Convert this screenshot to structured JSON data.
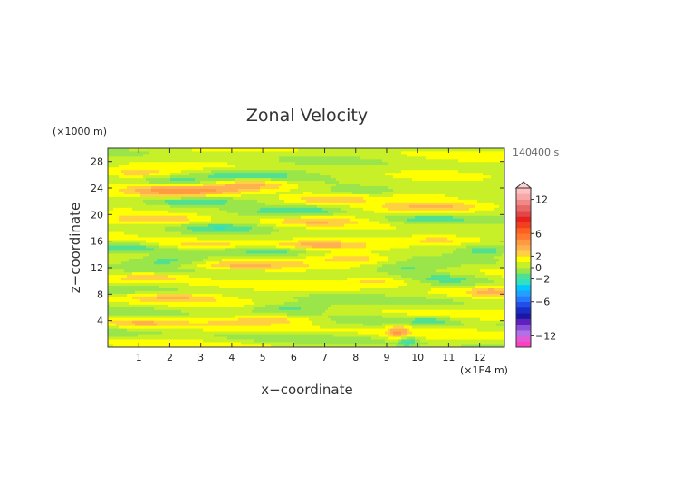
{
  "chart_data": {
    "type": "heatmap",
    "title": "Zonal Velocity",
    "xlabel": "x−coordinate",
    "ylabel": "z−coordinate",
    "x_unit": "(×1E4 m)",
    "y_unit": "(×1000 m)",
    "time_label": "140400 s",
    "xlim": [
      0,
      12.8
    ],
    "ylim": [
      0,
      30
    ],
    "x_ticks": [
      1,
      2,
      3,
      4,
      5,
      6,
      7,
      8,
      9,
      10,
      11,
      12
    ],
    "y_ticks": [
      4,
      8,
      12,
      16,
      20,
      24,
      28
    ],
    "colorbar": {
      "levels": [
        -14,
        -13,
        -12,
        -11,
        -10,
        -9,
        -8,
        -7,
        -6,
        -5,
        -4,
        -3,
        -2,
        -1,
        0,
        1,
        2,
        3,
        4,
        5,
        6,
        7,
        8,
        9,
        10,
        11,
        12,
        13,
        14
      ],
      "tick_labels": [
        "12",
        "6",
        "2",
        "0",
        "−2",
        "−6",
        "−12"
      ],
      "tick_values": [
        12,
        6,
        2,
        0,
        -2,
        -6,
        -12
      ],
      "colors": [
        "#ff3fbf",
        "#e05ad8",
        "#b070e8",
        "#8a50d8",
        "#6020c0",
        "#1818a0",
        "#1c2cc8",
        "#2050e8",
        "#2878ff",
        "#20a0ff",
        "#00c8ff",
        "#30e0c0",
        "#50e090",
        "#9ae64a",
        "#c8f028",
        "#ffff00",
        "#ffd040",
        "#ffb050",
        "#ff9a40",
        "#ff7a30",
        "#ff6020",
        "#f04020",
        "#e82020",
        "#e04848",
        "#e86868",
        "#f08888",
        "#f8a8a8",
        "#ffc0c0"
      ]
    },
    "field_features": [
      {
        "x": 2.4,
        "z": 23.6,
        "value": 4.0,
        "sx": 1.3,
        "sz": 0.65
      },
      {
        "x": 4.7,
        "z": 24.6,
        "value": 3.0,
        "sx": 1.0,
        "sz": 0.6
      },
      {
        "x": 4.5,
        "z": 26.0,
        "value": -2.6,
        "sx": 1.2,
        "sz": 0.6
      },
      {
        "x": 2.2,
        "z": 25.0,
        "value": -2.4,
        "sx": 0.9,
        "sz": 0.5
      },
      {
        "x": 2.6,
        "z": 22.0,
        "value": -2.8,
        "sx": 1.1,
        "sz": 0.5
      },
      {
        "x": 0.9,
        "z": 26.4,
        "value": 2.2,
        "sx": 0.8,
        "sz": 0.5
      },
      {
        "x": 7.0,
        "z": 22.4,
        "value": 2.4,
        "sx": 1.1,
        "sz": 0.6
      },
      {
        "x": 8.3,
        "z": 23.6,
        "value": -1.8,
        "sx": 0.8,
        "sz": 0.5
      },
      {
        "x": 10.6,
        "z": 21.2,
        "value": 2.6,
        "sx": 1.3,
        "sz": 0.6
      },
      {
        "x": 10.2,
        "z": 19.4,
        "value": -2.2,
        "sx": 1.2,
        "sz": 0.5
      },
      {
        "x": 6.2,
        "z": 20.6,
        "value": -2.4,
        "sx": 1.1,
        "sz": 0.5
      },
      {
        "x": 6.6,
        "z": 19.0,
        "value": 2.4,
        "sx": 1.2,
        "sz": 0.5
      },
      {
        "x": 1.7,
        "z": 19.4,
        "value": 2.2,
        "sx": 1.1,
        "sz": 0.5
      },
      {
        "x": 3.6,
        "z": 18.0,
        "value": -2.0,
        "sx": 1.0,
        "sz": 0.5
      },
      {
        "x": 0.6,
        "z": 15.0,
        "value": -2.4,
        "sx": 0.8,
        "sz": 0.5
      },
      {
        "x": 3.0,
        "z": 15.6,
        "value": 2.2,
        "sx": 1.2,
        "sz": 0.5
      },
      {
        "x": 5.4,
        "z": 14.6,
        "value": -2.0,
        "sx": 0.9,
        "sz": 0.5
      },
      {
        "x": 6.8,
        "z": 15.4,
        "value": 2.4,
        "sx": 1.0,
        "sz": 0.5
      },
      {
        "x": 10.8,
        "z": 16.2,
        "value": 2.4,
        "sx": 1.1,
        "sz": 0.5
      },
      {
        "x": 12.2,
        "z": 14.6,
        "value": -2.2,
        "sx": 0.6,
        "sz": 0.5
      },
      {
        "x": 2.0,
        "z": 13.0,
        "value": -2.0,
        "sx": 1.0,
        "sz": 0.5
      },
      {
        "x": 4.2,
        "z": 12.4,
        "value": 2.4,
        "sx": 1.2,
        "sz": 0.5
      },
      {
        "x": 8.0,
        "z": 13.4,
        "value": 2.2,
        "sx": 0.9,
        "sz": 0.5
      },
      {
        "x": 9.6,
        "z": 12.0,
        "value": -1.8,
        "sx": 0.9,
        "sz": 0.5
      },
      {
        "x": 1.4,
        "z": 10.6,
        "value": 2.2,
        "sx": 0.9,
        "sz": 0.5
      },
      {
        "x": 8.8,
        "z": 10.0,
        "value": 2.4,
        "sx": 1.0,
        "sz": 0.5
      },
      {
        "x": 10.9,
        "z": 10.4,
        "value": -1.6,
        "sx": 0.8,
        "sz": 0.5
      },
      {
        "x": 2.1,
        "z": 7.6,
        "value": 2.8,
        "sx": 1.1,
        "sz": 0.5
      },
      {
        "x": 5.8,
        "z": 6.0,
        "value": -2.6,
        "sx": 1.0,
        "sz": 0.55
      },
      {
        "x": 5.4,
        "z": 4.2,
        "value": 2.4,
        "sx": 1.2,
        "sz": 0.5
      },
      {
        "x": 1.0,
        "z": 3.6,
        "value": 2.0,
        "sx": 0.8,
        "sz": 0.5
      },
      {
        "x": 9.4,
        "z": 2.0,
        "value": 3.6,
        "sx": 0.25,
        "sz": 0.9
      },
      {
        "x": 9.6,
        "z": 1.0,
        "value": -3.0,
        "sx": 0.25,
        "sz": 0.8
      },
      {
        "x": 10.4,
        "z": 4.0,
        "value": -1.8,
        "sx": 0.5,
        "sz": 0.5
      },
      {
        "x": 12.4,
        "z": 8.4,
        "value": 2.2,
        "sx": 0.5,
        "sz": 0.5
      }
    ]
  }
}
